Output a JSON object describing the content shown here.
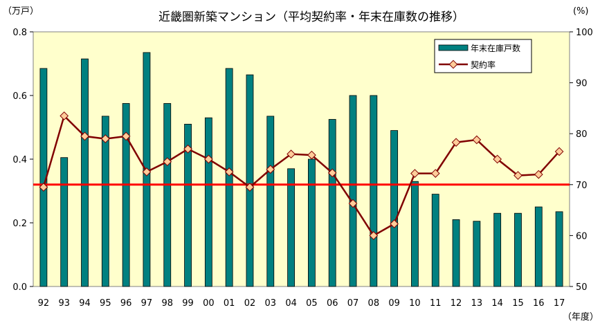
{
  "chart_data": {
    "type": "bar",
    "title": "近畿圏新築マンション（平均契約率・年末在庫数の推移）",
    "left_axis_unit": "（万戸）",
    "right_axis_unit": "(%)",
    "x_axis_unit": "（年度）",
    "categories": [
      "92",
      "93",
      "94",
      "95",
      "96",
      "97",
      "98",
      "99",
      "00",
      "01",
      "02",
      "03",
      "04",
      "05",
      "06",
      "07",
      "08",
      "09",
      "10",
      "11",
      "12",
      "13",
      "14",
      "15",
      "16",
      "17"
    ],
    "left_axis": {
      "min": 0,
      "max": 0.8,
      "ticks": [
        "0.0",
        "0.2",
        "0.4",
        "0.6",
        "0.8"
      ]
    },
    "right_axis": {
      "min": 50,
      "max": 100,
      "ticks": [
        "50",
        "60",
        "70",
        "80",
        "90",
        "100"
      ]
    },
    "series": [
      {
        "name": "年末在庫戸数",
        "kind": "bar",
        "axis": "left",
        "color": "#008080",
        "values": [
          0.685,
          0.405,
          0.715,
          0.535,
          0.575,
          0.735,
          0.575,
          0.51,
          0.53,
          0.685,
          0.665,
          0.535,
          0.37,
          0.4,
          0.525,
          0.6,
          0.6,
          0.49,
          0.33,
          0.29,
          0.21,
          0.205,
          0.23,
          0.23,
          0.25,
          0.235
        ]
      },
      {
        "name": "契約率",
        "kind": "line",
        "axis": "right",
        "color": "#800000",
        "marker_color": "#ffcc99",
        "values": [
          69.5,
          83.5,
          79.5,
          79.0,
          79.5,
          72.5,
          74.5,
          77.0,
          75.0,
          72.5,
          69.5,
          73.0,
          76.0,
          75.8,
          72.3,
          66.3,
          60.0,
          62.3,
          72.2,
          72.2,
          78.3,
          78.8,
          75.0,
          71.8,
          72.0,
          76.5
        ]
      }
    ],
    "reference_line": {
      "axis": "right",
      "value": 70,
      "color": "#ff0000"
    },
    "plot_background": "#ffffcc",
    "legend_position": "top-right",
    "grid": false
  }
}
